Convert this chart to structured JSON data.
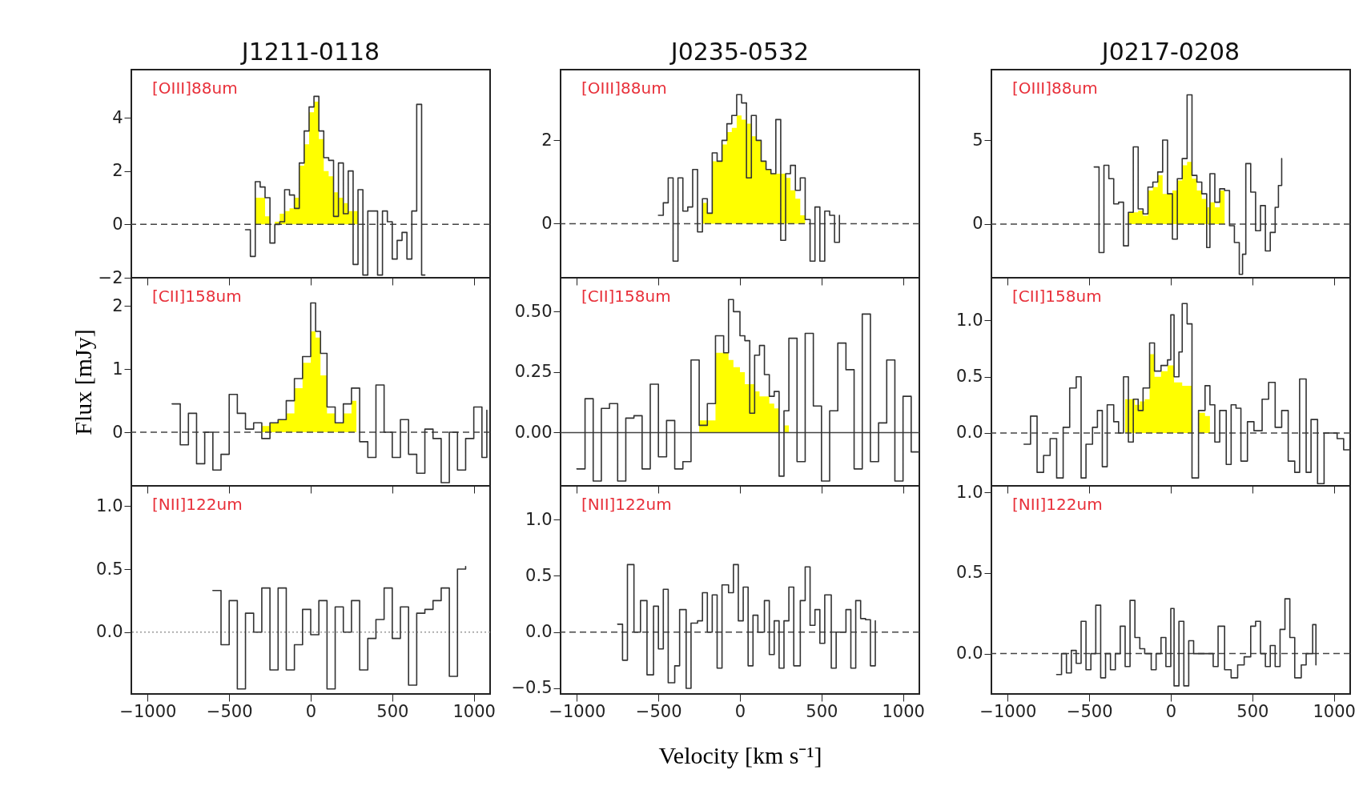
{
  "chart_data": [
    {
      "type": "step",
      "title": "J1211-0118",
      "xlim": [
        -1100,
        1100
      ],
      "xticks": [
        -1000,
        -500,
        0,
        500,
        1000
      ],
      "ylim": [
        -2,
        5.8
      ],
      "yticks": [
        -2,
        0,
        2,
        4
      ],
      "tick_labels": "y",
      "ref_lines": [
        {
          "axis": "y",
          "value": 0,
          "line_style": "dashed"
        }
      ],
      "annotations": [
        "[OIII]88um"
      ],
      "series": [
        {
          "type": "area",
          "color": "#ffff00",
          "x": [
            -340,
            -310,
            -280,
            -250,
            -220,
            -190,
            -160,
            -130,
            -100,
            -70,
            -40,
            -10,
            20,
            50,
            80,
            110,
            140,
            170,
            200,
            230,
            260,
            290
          ],
          "values": [
            1.0,
            1.0,
            0.3,
            0.0,
            0.1,
            0.4,
            0.5,
            0.6,
            1.0,
            2.2,
            3.0,
            4.2,
            4.6,
            3.2,
            2.0,
            1.8,
            1.2,
            1.0,
            0.8,
            0.5,
            0.5,
            0.3
          ]
        },
        {
          "type": "step",
          "color": "#333333",
          "x": [
            -400,
            -370,
            -340,
            -310,
            -280,
            -250,
            -220,
            -190,
            -160,
            -130,
            -100,
            -70,
            -40,
            -10,
            20,
            50,
            80,
            110,
            140,
            170,
            200,
            230,
            260,
            290,
            320,
            350,
            380,
            410,
            440,
            470,
            500,
            530,
            560,
            590,
            620,
            650,
            680,
            700
          ],
          "values": [
            -0.2,
            -1.2,
            1.6,
            1.4,
            1.0,
            -0.7,
            0.0,
            0.1,
            1.3,
            1.1,
            0.6,
            2.3,
            3.5,
            4.4,
            4.8,
            3.5,
            2.5,
            2.4,
            0.3,
            2.3,
            0.4,
            2.0,
            -1.5,
            1.3,
            -1.9,
            0.5,
            0.5,
            -1.9,
            0.5,
            0.1,
            -1.3,
            -0.6,
            -0.3,
            -1.3,
            0.5,
            4.5,
            -1.9,
            -1.9
          ]
        }
      ]
    },
    {
      "type": "step",
      "title": "J0235-0532",
      "xlim": [
        -1100,
        1100
      ],
      "xticks": [
        -1000,
        -500,
        0,
        500,
        1000
      ],
      "ylim": [
        -1.3,
        3.7
      ],
      "yticks": [
        0,
        2
      ],
      "tick_labels": "y",
      "ref_lines": [
        {
          "axis": "y",
          "value": 0,
          "line_style": "dashed"
        }
      ],
      "annotations": [
        "[OIII]88um"
      ],
      "series": [
        {
          "type": "area",
          "color": "#ffff00",
          "x": [
            -230,
            -200,
            -170,
            -140,
            -110,
            -80,
            -50,
            -20,
            10,
            40,
            70,
            100,
            130,
            160,
            190,
            220,
            250,
            280,
            310,
            340,
            370,
            400
          ],
          "values": [
            0.5,
            0.25,
            1.5,
            1.5,
            1.9,
            2.2,
            2.3,
            2.6,
            2.5,
            2.4,
            2.1,
            2.0,
            1.5,
            1.3,
            1.2,
            1.2,
            1.2,
            1.1,
            0.8,
            0.6,
            0.2,
            0.0
          ]
        },
        {
          "type": "step",
          "color": "#333333",
          "x": [
            -500,
            -470,
            -440,
            -410,
            -380,
            -350,
            -320,
            -290,
            -260,
            -230,
            -200,
            -170,
            -140,
            -110,
            -80,
            -50,
            -20,
            10,
            40,
            70,
            100,
            130,
            160,
            190,
            220,
            250,
            280,
            310,
            340,
            370,
            400,
            430,
            460,
            490,
            520,
            550,
            580,
            610
          ],
          "values": [
            0.2,
            0.5,
            1.1,
            -0.9,
            1.1,
            0.3,
            0.4,
            1.3,
            -0.2,
            0.6,
            0.25,
            1.7,
            1.5,
            2.0,
            2.4,
            2.6,
            3.1,
            2.9,
            1.1,
            2.6,
            2.0,
            1.5,
            1.3,
            1.2,
            2.5,
            -0.4,
            1.2,
            1.4,
            0.8,
            1.1,
            0.1,
            -0.9,
            0.4,
            -0.9,
            0.3,
            0.2,
            -0.45,
            0.2
          ]
        }
      ]
    },
    {
      "type": "step",
      "title": "J0217-0208",
      "xlim": [
        -1100,
        1100
      ],
      "xticks": [
        -1000,
        -500,
        0,
        500,
        1000
      ],
      "ylim": [
        -3.2,
        9.2
      ],
      "yticks": [
        0,
        5
      ],
      "tick_labels": "y",
      "ref_lines": [
        {
          "axis": "y",
          "value": 0,
          "line_style": "dashed"
        }
      ],
      "annotations": [
        "[OIII]88um"
      ],
      "series": [
        {
          "type": "area",
          "color": "#ffff00",
          "x": [
            -260,
            -230,
            -200,
            -170,
            -140,
            -110,
            -80,
            -50,
            -20,
            10,
            40,
            70,
            100,
            130,
            160,
            190,
            220,
            240,
            270,
            300,
            330
          ],
          "values": [
            0.7,
            0.7,
            0.8,
            0.5,
            2.0,
            2.2,
            2.9,
            1.8,
            1.8,
            2.0,
            2.6,
            3.5,
            3.7,
            2.7,
            2.0,
            1.5,
            1.0,
            1.3,
            1.0,
            2.0,
            0.0
          ]
        },
        {
          "type": "step",
          "color": "#333333",
          "x": [
            -470,
            -440,
            -410,
            -380,
            -350,
            -320,
            -290,
            -260,
            -230,
            -200,
            -170,
            -140,
            -110,
            -80,
            -50,
            -20,
            10,
            40,
            70,
            100,
            130,
            160,
            190,
            220,
            240,
            270,
            300,
            330,
            360,
            390,
            420,
            440,
            460,
            490,
            520,
            550,
            580,
            610,
            640,
            660,
            680
          ],
          "values": [
            3.4,
            -1.7,
            3.5,
            2.7,
            1.2,
            1.3,
            -1.3,
            0.7,
            4.6,
            0.9,
            0.6,
            2.2,
            2.5,
            3.1,
            5.0,
            1.8,
            -0.9,
            2.7,
            3.9,
            7.7,
            2.9,
            2.5,
            1.8,
            -1.4,
            3.0,
            1.3,
            2.1,
            2.0,
            -0.1,
            -1.1,
            -3.0,
            -1.8,
            3.6,
            1.9,
            -0.4,
            1.1,
            -1.6,
            -0.5,
            1.0,
            2.3,
            3.9
          ]
        }
      ]
    },
    {
      "type": "step",
      "ylabel": "Flux [mJy]",
      "xlim": [
        -1100,
        1100
      ],
      "xticks": [
        -1000,
        -500,
        0,
        500,
        1000
      ],
      "ylim": [
        -0.85,
        2.45
      ],
      "yticks": [
        0,
        1,
        2
      ],
      "tick_labels": "y",
      "ref_lines": [
        {
          "axis": "y",
          "value": 0,
          "line_style": "dashed"
        }
      ],
      "annotations": [
        "[CII]158um"
      ],
      "series": [
        {
          "type": "area",
          "color": "#ffff00",
          "x": [
            -300,
            -250,
            -200,
            -150,
            -100,
            -50,
            0,
            30,
            60,
            100,
            150,
            200,
            250,
            280
          ],
          "values": [
            0.1,
            0.15,
            0.2,
            0.3,
            0.7,
            1.1,
            1.6,
            1.5,
            0.9,
            0.3,
            0.15,
            0.3,
            0.5,
            0.1
          ]
        },
        {
          "type": "step",
          "color": "#333333",
          "x": [
            -850,
            -800,
            -750,
            -700,
            -650,
            -600,
            -550,
            -500,
            -450,
            -400,
            -350,
            -300,
            -250,
            -200,
            -150,
            -100,
            -50,
            0,
            30,
            60,
            100,
            150,
            200,
            250,
            300,
            350,
            400,
            450,
            500,
            550,
            600,
            650,
            700,
            750,
            800,
            850,
            900,
            950,
            1000,
            1050,
            1080
          ],
          "values": [
            0.45,
            -0.2,
            0.3,
            -0.5,
            0.0,
            -0.6,
            -0.35,
            0.6,
            0.3,
            0.05,
            0.15,
            -0.1,
            0.15,
            0.2,
            0.5,
            0.85,
            1.2,
            2.05,
            1.6,
            1.25,
            0.4,
            0.15,
            0.45,
            0.7,
            -0.15,
            -0.4,
            0.75,
            0.0,
            -0.4,
            0.2,
            -0.35,
            -0.65,
            0.05,
            -0.1,
            -0.8,
            0.0,
            -0.6,
            -0.1,
            0.4,
            -0.4,
            0.35
          ]
        }
      ]
    },
    {
      "type": "step",
      "xlim": [
        -1100,
        1100
      ],
      "xticks": [
        -1000,
        -500,
        0,
        500,
        1000
      ],
      "ylim": [
        -0.22,
        0.64
      ],
      "yticks": [
        {
          "value": 0,
          "label": "0.00"
        },
        {
          "value": 0.25,
          "label": "0.25"
        },
        {
          "value": 0.5,
          "label": "0.50"
        }
      ],
      "tick_labels": "y",
      "ref_lines": [
        {
          "axis": "y",
          "value": 0,
          "line_style": "solid"
        }
      ],
      "annotations": [
        "[CII]158um"
      ],
      "series": [
        {
          "type": "area",
          "color": "#ffff00",
          "x": [
            -250,
            -200,
            -150,
            -100,
            -70,
            -40,
            0,
            30,
            60,
            90,
            120,
            150,
            180,
            210,
            240,
            270,
            300
          ],
          "values": [
            0.05,
            0.05,
            0.33,
            0.33,
            0.3,
            0.27,
            0.25,
            0.2,
            0.2,
            0.17,
            0.15,
            0.15,
            0.12,
            0.1,
            0.0,
            0.03,
            0.03
          ]
        },
        {
          "type": "step",
          "color": "#333333",
          "x": [
            -1000,
            -950,
            -900,
            -850,
            -800,
            -750,
            -700,
            -650,
            -600,
            -550,
            -500,
            -450,
            -400,
            -350,
            -300,
            -250,
            -200,
            -150,
            -100,
            -70,
            -40,
            0,
            30,
            60,
            90,
            120,
            150,
            180,
            210,
            240,
            270,
            300,
            350,
            400,
            450,
            500,
            550,
            600,
            650,
            700,
            750,
            800,
            850,
            900,
            950,
            1000,
            1050,
            1100
          ],
          "values": [
            -0.15,
            0.14,
            -0.2,
            0.1,
            0.12,
            -0.2,
            0.06,
            0.07,
            -0.15,
            0.2,
            -0.1,
            0.05,
            -0.15,
            -0.12,
            0.3,
            0.03,
            0.12,
            0.4,
            0.33,
            0.55,
            0.5,
            0.4,
            0.38,
            0.08,
            0.32,
            0.36,
            0.24,
            0.15,
            0.17,
            -0.18,
            0.09,
            0.39,
            -0.12,
            0.41,
            0.11,
            -0.2,
            0.09,
            0.37,
            0.26,
            -0.15,
            0.49,
            -0.12,
            0.04,
            0.3,
            -0.2,
            0.15,
            -0.08,
            -0.08
          ]
        }
      ]
    },
    {
      "type": "step",
      "xlim": [
        -1100,
        1100
      ],
      "xticks": [
        -1000,
        -500,
        0,
        500,
        1000
      ],
      "ylim": [
        -0.47,
        1.38
      ],
      "yticks": [
        {
          "value": 0,
          "label": "0.0"
        },
        0.5,
        {
          "value": 1,
          "label": "1.0"
        }
      ],
      "tick_labels": "y",
      "ref_lines": [
        {
          "axis": "y",
          "value": 0,
          "line_style": "dashed"
        }
      ],
      "annotations": [
        "[CII]158um"
      ],
      "series": [
        {
          "type": "area",
          "color": "#ffff00",
          "x": [
            -280,
            -250,
            -220,
            -190,
            -160,
            -130,
            -100,
            -60,
            -20,
            0,
            20,
            50,
            70,
            100,
            130,
            170,
            210,
            240
          ],
          "values": [
            0.3,
            0.3,
            0.25,
            0.28,
            0.3,
            0.7,
            0.5,
            0.55,
            0.6,
            0.6,
            0.45,
            0.45,
            0.42,
            0.42,
            0.0,
            0.18,
            0.15,
            0.05
          ]
        },
        {
          "type": "step",
          "color": "#333333",
          "x": [
            -900,
            -860,
            -820,
            -780,
            -740,
            -700,
            -660,
            -620,
            -580,
            -550,
            -520,
            -480,
            -450,
            -420,
            -390,
            -350,
            -320,
            -290,
            -260,
            -230,
            -200,
            -170,
            -130,
            -100,
            -60,
            -20,
            0,
            20,
            50,
            70,
            100,
            130,
            170,
            210,
            240,
            270,
            300,
            340,
            370,
            400,
            430,
            470,
            510,
            560,
            600,
            640,
            680,
            720,
            760,
            790,
            830,
            860,
            900,
            940,
            980,
            1020,
            1060,
            1100
          ],
          "values": [
            -0.1,
            0.15,
            -0.35,
            -0.2,
            -0.05,
            -0.4,
            0.05,
            0.4,
            0.5,
            -0.4,
            -0.1,
            0.05,
            0.2,
            -0.3,
            0.25,
            0.1,
            0.0,
            0.5,
            -0.08,
            0.3,
            0.2,
            0.4,
            0.8,
            0.55,
            0.6,
            0.65,
            1.05,
            0.5,
            0.72,
            1.15,
            0.97,
            -0.4,
            0.2,
            0.42,
            0.25,
            -0.08,
            0.2,
            -0.28,
            0.25,
            0.22,
            -0.25,
            0.1,
            0.02,
            0.3,
            0.45,
            0.05,
            0.2,
            -0.25,
            -0.35,
            0.48,
            -0.35,
            0.12,
            -0.45,
            0.0,
            0.0,
            -0.05,
            -0.15,
            -0.18
          ]
        }
      ]
    },
    {
      "type": "step",
      "xlim": [
        -1100,
        1100
      ],
      "xticks": [
        -1000,
        -500,
        0,
        500,
        1000
      ],
      "ylim": [
        -0.49,
        1.16
      ],
      "yticks": [
        {
          "value": 0,
          "label": "0.0"
        },
        0.5,
        {
          "value": 1,
          "label": "1.0"
        }
      ],
      "ref_lines": [
        {
          "axis": "y",
          "value": 0,
          "line_style": "dotted",
          "color": "#999999"
        }
      ],
      "annotations": [
        "[NII]122um"
      ],
      "series": [
        {
          "type": "step",
          "color": "#333333",
          "x": [
            -600,
            -550,
            -500,
            -450,
            -400,
            -350,
            -300,
            -250,
            -200,
            -150,
            -100,
            -50,
            0,
            50,
            100,
            150,
            200,
            250,
            300,
            350,
            400,
            450,
            500,
            550,
            600,
            650,
            700,
            750,
            800,
            850,
            900,
            950
          ],
          "values": [
            0.33,
            -0.1,
            0.25,
            -0.45,
            0.15,
            0.0,
            0.35,
            -0.3,
            0.35,
            -0.3,
            -0.1,
            0.18,
            -0.02,
            0.25,
            -0.45,
            0.2,
            0.0,
            0.25,
            -0.3,
            -0.05,
            0.1,
            0.35,
            -0.05,
            0.2,
            -0.42,
            0.15,
            0.18,
            0.25,
            0.35,
            -0.35,
            0.5,
            0.52
          ]
        }
      ]
    },
    {
      "type": "step",
      "xlabel": "Velocity [km s⁻¹]",
      "xlim": [
        -1100,
        1100
      ],
      "xticks": [
        -1000,
        -500,
        0,
        500,
        1000
      ],
      "ylim": [
        -0.55,
        1.3
      ],
      "yticks": [
        -0.5,
        {
          "value": 0,
          "label": "0.0"
        },
        0.5,
        {
          "value": 1,
          "label": "1.0"
        }
      ],
      "ref_lines": [
        {
          "axis": "y",
          "value": 0,
          "line_style": "dashed"
        }
      ],
      "annotations": [
        "[NII]122um"
      ],
      "series": [
        {
          "type": "step",
          "color": "#333333",
          "x": [
            -750,
            -720,
            -690,
            -650,
            -610,
            -570,
            -530,
            -500,
            -470,
            -440,
            -400,
            -370,
            -330,
            -300,
            -260,
            -230,
            -200,
            -170,
            -140,
            -110,
            -70,
            -40,
            -10,
            20,
            50,
            80,
            110,
            150,
            180,
            210,
            240,
            270,
            300,
            330,
            370,
            400,
            430,
            460,
            490,
            520,
            560,
            590,
            620,
            650,
            680,
            710,
            740,
            770,
            800,
            830
          ],
          "values": [
            0.07,
            -0.25,
            0.6,
            0.0,
            0.28,
            -0.38,
            0.23,
            -0.15,
            0.38,
            -0.45,
            -0.3,
            0.2,
            -0.5,
            0.08,
            0.1,
            0.35,
            0.0,
            0.33,
            -0.32,
            0.42,
            0.35,
            0.6,
            0.1,
            0.4,
            -0.3,
            0.15,
            0.0,
            0.28,
            -0.2,
            0.1,
            -0.32,
            0.1,
            0.4,
            -0.3,
            0.28,
            0.58,
            0.06,
            0.2,
            -0.1,
            0.33,
            -0.32,
            0.0,
            0.0,
            0.2,
            -0.32,
            0.28,
            0.12,
            0.11,
            -0.3,
            0.1
          ]
        }
      ]
    },
    {
      "type": "step",
      "xlim": [
        -1100,
        1100
      ],
      "xticks": [
        -1000,
        -500,
        0,
        500,
        1000
      ],
      "ylim": [
        -0.25,
        1.04
      ],
      "yticks": [
        {
          "value": 0,
          "label": "0.0"
        },
        0.5,
        {
          "value": 1,
          "label": "1.0"
        }
      ],
      "ref_lines": [
        {
          "axis": "y",
          "value": 0,
          "line_style": "dashed"
        }
      ],
      "annotations": [
        "[NII]122um"
      ],
      "series": [
        {
          "type": "step",
          "color": "#333333",
          "x": [
            -700,
            -670,
            -640,
            -610,
            -580,
            -550,
            -520,
            -490,
            -460,
            -430,
            -400,
            -370,
            -340,
            -310,
            -280,
            -250,
            -220,
            -190,
            -160,
            -120,
            -90,
            -60,
            -30,
            0,
            20,
            50,
            80,
            110,
            140,
            180,
            220,
            260,
            290,
            330,
            370,
            410,
            450,
            490,
            520,
            550,
            580,
            610,
            640,
            670,
            700,
            730,
            760,
            800,
            830,
            870,
            890
          ],
          "values": [
            -0.13,
            0.0,
            -0.12,
            0.02,
            -0.06,
            0.2,
            -0.1,
            0.0,
            0.3,
            -0.15,
            0.0,
            -0.1,
            0.0,
            0.17,
            -0.08,
            0.33,
            0.1,
            0.03,
            0.0,
            -0.1,
            0.0,
            0.1,
            -0.08,
            0.28,
            -0.2,
            0.2,
            -0.2,
            0.08,
            0.0,
            0.0,
            0.0,
            -0.08,
            0.17,
            -0.1,
            -0.15,
            -0.07,
            -0.02,
            0.17,
            0.2,
            0.0,
            -0.08,
            0.05,
            -0.08,
            0.15,
            0.34,
            0.1,
            -0.15,
            -0.07,
            0.0,
            0.18,
            -0.07
          ]
        }
      ]
    }
  ]
}
